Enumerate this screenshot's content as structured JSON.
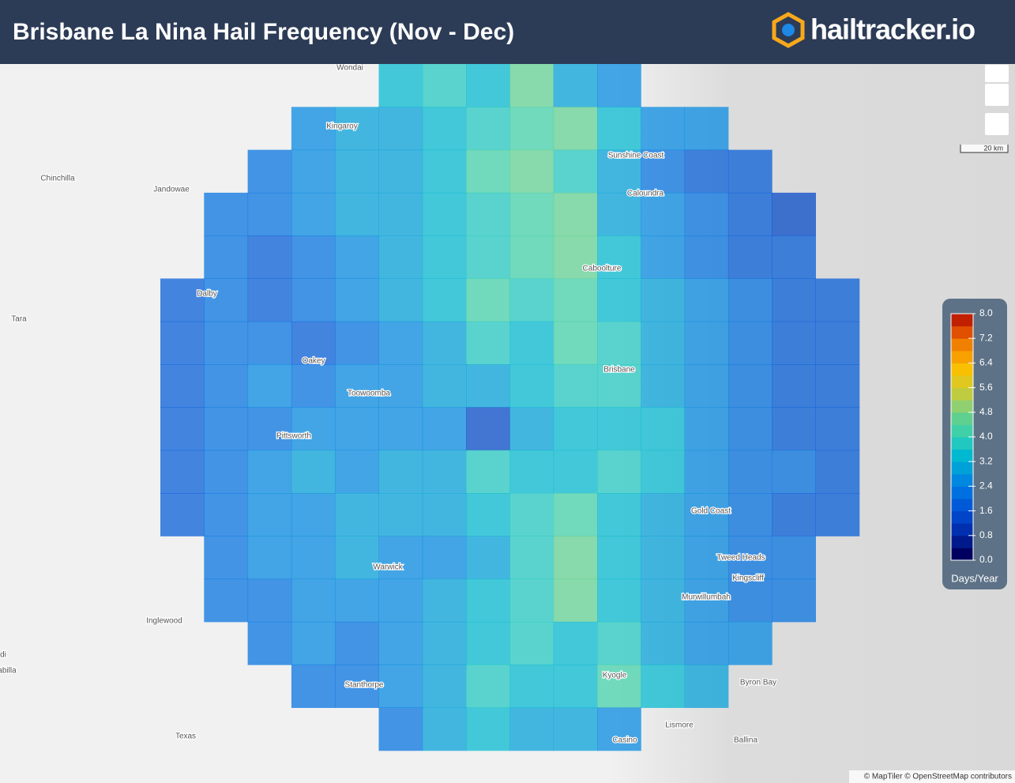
{
  "header": {
    "title": "Brisbane La Nina Hail Frequency (Nov - Dec)",
    "logo": "hailtracker.io"
  },
  "places": [
    "Wondai",
    "Kingaroy",
    "Chinchilla",
    "Jandowae",
    "Sunshine Coast",
    "Caloundra",
    "Caboolture",
    "Dalby",
    "Tara",
    "Oakey",
    "Brisbane",
    "Toowoomba",
    "Pittsworth",
    "Gold Coast",
    "Tweed Heads",
    "Kingscliff",
    "Warwick",
    "Murwillumbah",
    "Inglewood",
    "Byron Bay",
    "Stanthorpe",
    "Kyogle",
    "Lismore",
    "Texas",
    "Casino",
    "Ballina",
    "di",
    "abilla"
  ],
  "scale_bar": "20 km",
  "attribution": "© MapTiler © OpenStreetMap contributors",
  "legend": {
    "unit": "Days/Year",
    "lim": [
      0,
      8
    ],
    "ticks": [
      {
        "value": 0,
        "label": "0.0"
      },
      {
        "value": 0.8,
        "label": "0.8"
      },
      {
        "value": 1.6,
        "label": "1.6"
      },
      {
        "value": 2.4,
        "label": "2.4"
      },
      {
        "value": 3.2,
        "label": "3.2"
      },
      {
        "value": 4,
        "label": "4.0"
      },
      {
        "value": 4.8,
        "label": "4.8"
      },
      {
        "value": 5.6,
        "label": "5.6"
      },
      {
        "value": 6.4,
        "label": "6.4"
      },
      {
        "value": 7.2,
        "label": "7.2"
      },
      {
        "value": 8,
        "label": "8.0"
      }
    ],
    "colors": [
      "#000060",
      "#001a8c",
      "#0030b0",
      "#0045c8",
      "#005ad8",
      "#0070e0",
      "#0088e0",
      "#00a0d8",
      "#00b8d0",
      "#20c8c0",
      "#40d0a8",
      "#60d090",
      "#90d070",
      "#c0cc40",
      "#e0c820",
      "#f8c000",
      "#f8a000",
      "#f08000",
      "#e05000",
      "#c02000"
    ]
  },
  "hail_grid": {
    "rows": [
      [
        null,
        null,
        null,
        null,
        null,
        3.2,
        3.6,
        3.4,
        4.4,
        3.0,
        2.6,
        null,
        null,
        null,
        null,
        null
      ],
      [
        null,
        null,
        null,
        2.6,
        2.8,
        3.0,
        3.4,
        3.8,
        4.2,
        4.6,
        3.4,
        2.6,
        2.4,
        null,
        null,
        null
      ],
      [
        null,
        null,
        2.2,
        2.6,
        2.8,
        3.0,
        3.4,
        4.0,
        4.4,
        3.8,
        2.8,
        2.2,
        1.8,
        1.6,
        null,
        null
      ],
      [
        null,
        2.0,
        2.2,
        2.4,
        2.8,
        3.0,
        3.2,
        3.6,
        4.2,
        4.4,
        3.0,
        2.4,
        2.0,
        1.6,
        1.4,
        null
      ],
      [
        null,
        2.0,
        1.8,
        2.2,
        2.6,
        3.0,
        3.4,
        3.6,
        4.0,
        4.6,
        3.2,
        2.6,
        2.2,
        1.8,
        1.6,
        null
      ],
      [
        1.8,
        2.0,
        1.8,
        2.2,
        2.4,
        2.8,
        3.4,
        4.2,
        3.6,
        4.0,
        3.4,
        2.8,
        2.4,
        2.0,
        1.8,
        1.6
      ],
      [
        1.8,
        2.0,
        2.2,
        1.8,
        2.2,
        2.6,
        3.0,
        3.8,
        3.2,
        4.2,
        3.8,
        3.0,
        2.4,
        2.0,
        1.8,
        1.8
      ],
      [
        1.6,
        2.0,
        2.4,
        2.2,
        2.6,
        2.4,
        2.8,
        3.0,
        3.2,
        3.8,
        3.6,
        3.0,
        2.6,
        2.0,
        1.8,
        1.6
      ],
      [
        1.8,
        2.2,
        2.2,
        2.4,
        2.4,
        2.6,
        2.4,
        1.2,
        3.0,
        3.2,
        3.4,
        3.4,
        2.6,
        2.0,
        1.8,
        1.6
      ],
      [
        1.8,
        2.0,
        2.6,
        2.8,
        2.6,
        2.8,
        3.0,
        3.6,
        3.4,
        3.2,
        3.6,
        3.2,
        2.4,
        2.2,
        2.0,
        1.6
      ],
      [
        1.6,
        2.0,
        2.4,
        2.6,
        2.8,
        2.8,
        3.0,
        3.4,
        3.8,
        4.2,
        3.4,
        3.0,
        2.4,
        2.0,
        1.8,
        1.6
      ],
      [
        null,
        2.0,
        2.4,
        2.6,
        2.8,
        2.4,
        2.6,
        3.0,
        3.6,
        4.4,
        3.2,
        2.8,
        2.4,
        2.2,
        2.0,
        null
      ],
      [
        null,
        2.0,
        2.2,
        2.6,
        2.4,
        2.6,
        2.8,
        3.2,
        3.8,
        4.4,
        3.4,
        3.0,
        2.6,
        2.2,
        2.0,
        null
      ],
      [
        null,
        null,
        2.2,
        2.4,
        2.2,
        2.6,
        3.0,
        3.4,
        3.6,
        3.2,
        3.8,
        3.0,
        2.6,
        2.4,
        null,
        null
      ],
      [
        null,
        null,
        null,
        2.2,
        2.0,
        2.6,
        3.0,
        3.6,
        3.4,
        3.2,
        4.0,
        3.2,
        2.8,
        null,
        null,
        null
      ],
      [
        null,
        null,
        null,
        null,
        null,
        2.0,
        3.0,
        3.2,
        2.8,
        3.0,
        2.6,
        null,
        null,
        null,
        null,
        null
      ]
    ]
  }
}
